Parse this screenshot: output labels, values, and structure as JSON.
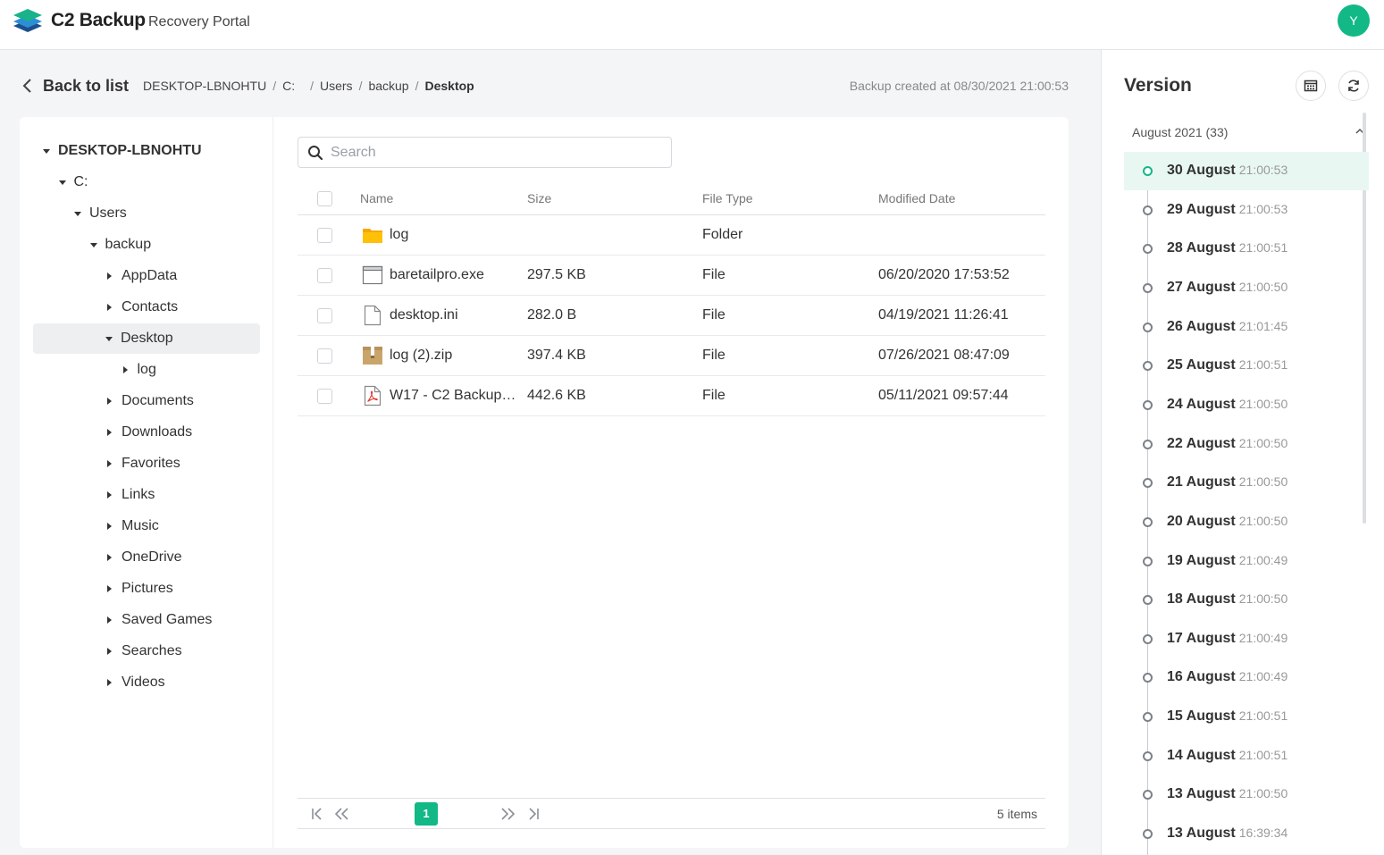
{
  "header": {
    "brand": "C2 Backup",
    "subtitle": "Recovery Portal",
    "avatar_initial": "Y"
  },
  "nav": {
    "back_label": "Back to list",
    "breadcrumb": [
      "DESKTOP-LBNOHTU",
      "C:",
      "",
      "Users",
      "backup",
      "Desktop"
    ],
    "backup_created": "Backup created at 08/30/2021 21:00:53"
  },
  "tree": [
    {
      "label": "DESKTOP-LBNOHTU",
      "level": 0,
      "expanded": true,
      "root": true
    },
    {
      "label": "C:",
      "level": 1,
      "expanded": true
    },
    {
      "label": "Users",
      "level": 2,
      "expanded": true
    },
    {
      "label": "backup",
      "level": 3,
      "expanded": true
    },
    {
      "label": "AppData",
      "level": 4,
      "expanded": false
    },
    {
      "label": "Contacts",
      "level": 4,
      "expanded": false
    },
    {
      "label": "Desktop",
      "level": 4,
      "expanded": true,
      "selected": true
    },
    {
      "label": "log",
      "level": 5,
      "expanded": false
    },
    {
      "label": "Documents",
      "level": 4,
      "expanded": false
    },
    {
      "label": "Downloads",
      "level": 4,
      "expanded": false
    },
    {
      "label": "Favorites",
      "level": 4,
      "expanded": false
    },
    {
      "label": "Links",
      "level": 4,
      "expanded": false
    },
    {
      "label": "Music",
      "level": 4,
      "expanded": false
    },
    {
      "label": "OneDrive",
      "level": 4,
      "expanded": false
    },
    {
      "label": "Pictures",
      "level": 4,
      "expanded": false
    },
    {
      "label": "Saved Games",
      "level": 4,
      "expanded": false
    },
    {
      "label": "Searches",
      "level": 4,
      "expanded": false
    },
    {
      "label": "Videos",
      "level": 4,
      "expanded": false
    }
  ],
  "search": {
    "placeholder": "Search",
    "value": ""
  },
  "table": {
    "columns": {
      "name": "Name",
      "size": "Size",
      "type": "File Type",
      "modified": "Modified Date"
    },
    "rows": [
      {
        "icon": "folder-icon",
        "name": "log",
        "size": "",
        "type": "Folder",
        "modified": ""
      },
      {
        "icon": "exe-file-icon",
        "name": "baretailpro.exe",
        "size": "297.5 KB",
        "type": "File",
        "modified": "06/20/2020 17:53:52"
      },
      {
        "icon": "document-icon",
        "name": "desktop.ini",
        "size": "282.0 B",
        "type": "File",
        "modified": "04/19/2021 11:26:41"
      },
      {
        "icon": "zip-archive-icon",
        "name": "log (2).zip",
        "size": "397.4 KB",
        "type": "File",
        "modified": "07/26/2021 08:47:09"
      },
      {
        "icon": "pdf-icon",
        "name": "W17 - C2 Backup…",
        "size": "442.6 KB",
        "type": "File",
        "modified": "05/11/2021 09:57:44"
      }
    ]
  },
  "pagination": {
    "current_page": "1",
    "items_label": "5 items"
  },
  "version": {
    "title": "Version",
    "group_label": "August 2021 (33)",
    "entries": [
      {
        "date": "30 August",
        "time": "21:00:53",
        "selected": true
      },
      {
        "date": "29 August",
        "time": "21:00:53"
      },
      {
        "date": "28 August",
        "time": "21:00:51"
      },
      {
        "date": "27 August",
        "time": "21:00:50"
      },
      {
        "date": "26 August",
        "time": "21:01:45"
      },
      {
        "date": "25 August",
        "time": "21:00:51"
      },
      {
        "date": "24 August",
        "time": "21:00:50"
      },
      {
        "date": "22 August",
        "time": "21:00:50"
      },
      {
        "date": "21 August",
        "time": "21:00:50"
      },
      {
        "date": "20 August",
        "time": "21:00:50"
      },
      {
        "date": "19 August",
        "time": "21:00:49"
      },
      {
        "date": "18 August",
        "time": "21:00:50"
      },
      {
        "date": "17 August",
        "time": "21:00:49"
      },
      {
        "date": "16 August",
        "time": "21:00:49"
      },
      {
        "date": "15 August",
        "time": "21:00:51"
      },
      {
        "date": "14 August",
        "time": "21:00:51"
      },
      {
        "date": "13 August",
        "time": "21:00:50"
      },
      {
        "date": "13 August",
        "time": "16:39:34"
      }
    ]
  },
  "colors": {
    "accent": "#12b886",
    "selected_row_bg": "#e9f7f3",
    "tree_selected_bg": "#edeff1"
  }
}
